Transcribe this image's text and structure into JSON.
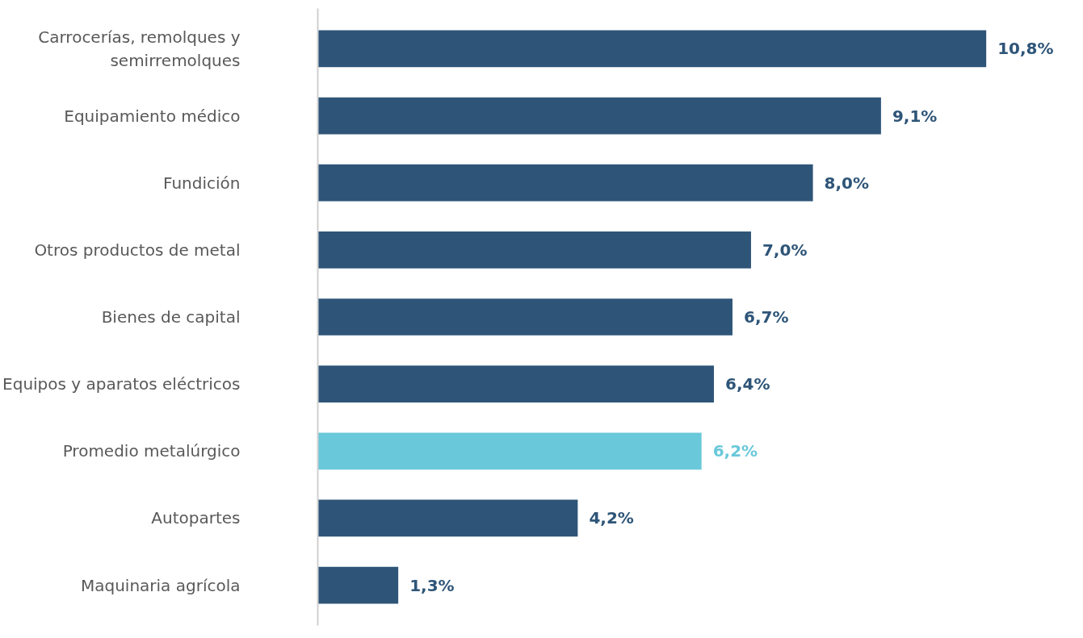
{
  "chart_data": {
    "type": "bar",
    "orientation": "horizontal",
    "categories": [
      "Carrocerías, remolques y semirremolques",
      "Equipamiento médico",
      "Fundición",
      "Otros productos de metal",
      "Bienes de capital",
      "Equipos y aparatos eléctricos",
      "Promedio metalúrgico",
      "Autopartes",
      "Maquinaria agrícola"
    ],
    "values": [
      10.8,
      9.1,
      8.0,
      7.0,
      6.7,
      6.4,
      6.2,
      4.2,
      1.3
    ],
    "colors": [
      "#2e5578",
      "#2e5578",
      "#2e5578",
      "#2e5578",
      "#2e5578",
      "#2e5578",
      "#69c8da",
      "#2e5578",
      "#2e5578"
    ],
    "value_labels": [
      "10,8%",
      "9,1%",
      "8,0%",
      "7,0%",
      "6,7%",
      "6,4%",
      "6,2%",
      "4,2%",
      "1,3%"
    ],
    "tick_labels": "y",
    "grid": false
  }
}
